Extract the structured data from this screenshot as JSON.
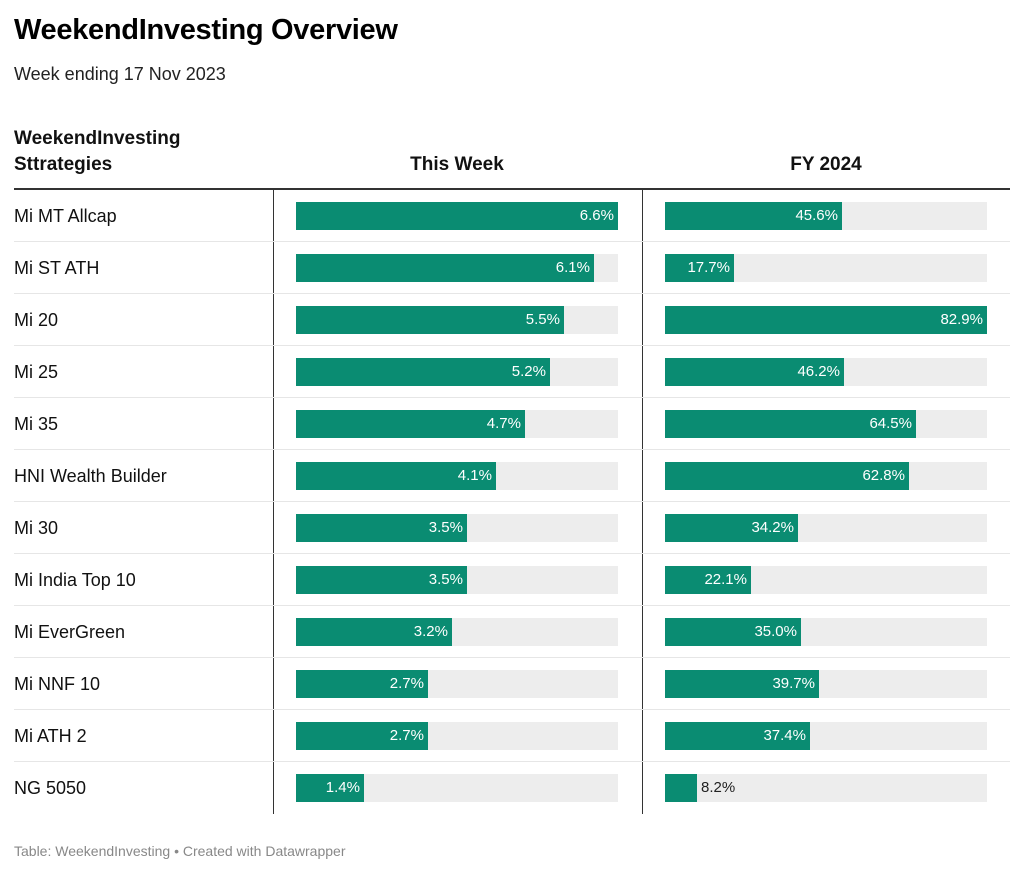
{
  "title": "WeekendInvesting Overview",
  "subtitle": "Week ending 17 Nov 2023",
  "footer": "Table: WeekendInvesting • Created with Datawrapper",
  "colors": {
    "bar": "#0a8c72",
    "track": "#ededed"
  },
  "chart_data": {
    "type": "bar",
    "columns": {
      "label": "WeekendInvesting Sttrategies",
      "week": "This Week",
      "fy": "FY 2024"
    },
    "ranges": {
      "week": [
        0,
        6.6
      ],
      "fy": [
        0,
        82.9
      ]
    },
    "categories": [
      "Mi MT Allcap",
      "Mi ST ATH",
      "Mi 20",
      "Mi 25",
      "Mi 35",
      "HNI Wealth Builder",
      "Mi 30",
      "Mi India Top 10",
      "Mi EverGreen",
      "Mi NNF 10",
      "Mi ATH 2",
      "NG 5050"
    ],
    "series": [
      {
        "name": "This Week",
        "key": "week",
        "values": [
          6.6,
          6.1,
          5.5,
          5.2,
          4.7,
          4.1,
          3.5,
          3.5,
          3.2,
          2.7,
          2.7,
          1.4
        ]
      },
      {
        "name": "FY 2024",
        "key": "fy",
        "values": [
          45.6,
          17.7,
          82.9,
          46.2,
          64.5,
          62.8,
          34.2,
          22.1,
          35.0,
          39.7,
          37.4,
          8.2
        ]
      }
    ]
  }
}
